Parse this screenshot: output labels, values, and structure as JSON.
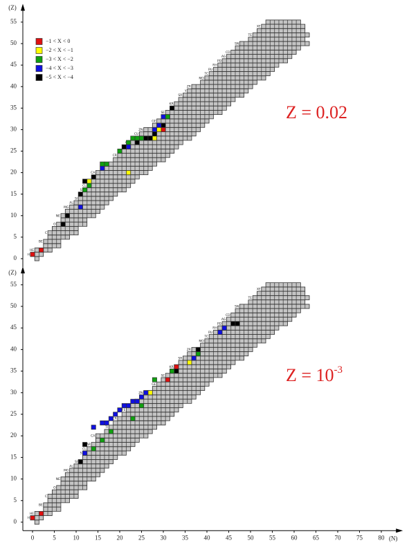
{
  "chart_data": [
    {
      "type": "nuclide",
      "y_label": "(Z)",
      "annotation": "Z = 0.02",
      "ylim": [
        -1,
        57
      ],
      "yticks": [
        0,
        5,
        10,
        15,
        20,
        25,
        30,
        35,
        40,
        45,
        50,
        55
      ],
      "xlim": [
        -2,
        84
      ],
      "rows": [
        [
          0,
          1,
          1
        ],
        [
          1,
          0,
          2
        ],
        [
          2,
          1,
          4
        ],
        [
          3,
          3,
          6
        ],
        [
          4,
          3,
          6
        ],
        [
          5,
          4,
          8
        ],
        [
          6,
          4,
          10
        ],
        [
          7,
          5,
          10
        ],
        [
          8,
          6,
          12
        ],
        [
          9,
          7,
          12
        ],
        [
          10,
          7,
          14
        ],
        [
          11,
          8,
          15
        ],
        [
          12,
          9,
          16
        ],
        [
          13,
          10,
          17
        ],
        [
          14,
          11,
          18
        ],
        [
          15,
          12,
          19
        ],
        [
          16,
          12,
          21
        ],
        [
          17,
          13,
          22
        ],
        [
          18,
          14,
          23
        ],
        [
          19,
          15,
          24
        ],
        [
          20,
          15,
          26
        ],
        [
          21,
          17,
          27
        ],
        [
          22,
          18,
          28
        ],
        [
          23,
          19,
          30
        ],
        [
          24,
          20,
          31
        ],
        [
          25,
          21,
          32
        ],
        [
          26,
          22,
          33
        ],
        [
          27,
          23,
          34
        ],
        [
          28,
          24,
          36
        ],
        [
          29,
          25,
          37
        ],
        [
          30,
          26,
          38
        ],
        [
          31,
          28,
          39
        ],
        [
          32,
          29,
          40
        ],
        [
          33,
          30,
          41
        ],
        [
          34,
          31,
          43
        ],
        [
          35,
          32,
          44
        ],
        [
          36,
          33,
          45
        ],
        [
          37,
          34,
          46
        ],
        [
          38,
          35,
          48
        ],
        [
          39,
          36,
          49
        ],
        [
          40,
          37,
          50
        ],
        [
          41,
          39,
          51
        ],
        [
          42,
          40,
          53
        ],
        [
          43,
          41,
          54
        ],
        [
          44,
          42,
          55
        ],
        [
          45,
          43,
          56
        ],
        [
          46,
          44,
          58
        ],
        [
          47,
          45,
          59
        ],
        [
          48,
          46,
          60
        ],
        [
          49,
          47,
          61
        ],
        [
          50,
          48,
          63
        ],
        [
          51,
          50,
          62
        ],
        [
          52,
          51,
          63
        ],
        [
          53,
          52,
          62
        ],
        [
          54,
          53,
          62
        ],
        [
          55,
          54,
          61
        ]
      ],
      "elements": [
        {
          "z": 1,
          "label": "H"
        },
        {
          "z": 2,
          "label": "HE"
        },
        {
          "z": 4,
          "label": "BE"
        },
        {
          "z": 6,
          "label": "C"
        },
        {
          "z": 8,
          "label": "O"
        },
        {
          "z": 10,
          "label": "NE"
        },
        {
          "z": 12,
          "label": "MG"
        },
        {
          "z": 13,
          "label": "AL"
        },
        {
          "z": 14,
          "label": "SI"
        },
        {
          "z": 15,
          "label": "P"
        },
        {
          "z": 16,
          "label": "S"
        },
        {
          "z": 17,
          "label": "CL"
        },
        {
          "z": 18,
          "label": "AR"
        },
        {
          "z": 20,
          "label": "CA"
        },
        {
          "z": 22,
          "label": "TI"
        },
        {
          "z": 24,
          "label": "CR"
        },
        {
          "z": 26,
          "label": "FE"
        },
        {
          "z": 27,
          "label": "CO"
        },
        {
          "z": 28,
          "label": "NI"
        },
        {
          "z": 29,
          "label": "CU"
        },
        {
          "z": 30,
          "label": "ZN"
        },
        {
          "z": 32,
          "label": "GE"
        },
        {
          "z": 34,
          "label": "SE"
        },
        {
          "z": 36,
          "label": "KR"
        },
        {
          "z": 38,
          "label": "SR"
        },
        {
          "z": 39,
          "label": "Y"
        },
        {
          "z": 40,
          "label": "ZR"
        },
        {
          "z": 42,
          "label": "MO"
        },
        {
          "z": 43,
          "label": "TC"
        },
        {
          "z": 44,
          "label": "RU"
        },
        {
          "z": 45,
          "label": "RH"
        },
        {
          "z": 46,
          "label": "PD"
        },
        {
          "z": 47,
          "label": "AG"
        },
        {
          "z": 48,
          "label": "CD"
        },
        {
          "z": 50,
          "label": "SN"
        },
        {
          "z": 52,
          "label": "TE"
        },
        {
          "z": 54,
          "label": "XE"
        }
      ],
      "series": [
        {
          "name": "−1 < X < 0",
          "color": "#e01010",
          "cells": [
            [
              0,
              1
            ],
            [
              2,
              2
            ],
            [
              30,
              30
            ]
          ]
        },
        {
          "name": "−2 < X < −1",
          "color": "#ffff00",
          "cells": [
            [
              13,
              18
            ],
            [
              22,
              20
            ],
            [
              27,
              28
            ],
            [
              28,
              28
            ],
            [
              29,
              30
            ]
          ]
        },
        {
          "name": "−3 < X < −2",
          "color": "#10a010",
          "cells": [
            [
              12,
              16
            ],
            [
              13,
              17
            ],
            [
              16,
              22
            ],
            [
              17,
              22
            ],
            [
              20,
              25
            ],
            [
              22,
              27
            ],
            [
              23,
              28
            ],
            [
              24,
              28
            ],
            [
              25,
              28
            ],
            [
              31,
              33
            ]
          ]
        },
        {
          "name": "−4 < X < −3",
          "color": "#1010e0",
          "cells": [
            [
              11,
              12
            ],
            [
              16,
              21
            ],
            [
              22,
              26
            ],
            [
              28,
              30
            ],
            [
              29,
              31
            ],
            [
              30,
              33
            ]
          ]
        },
        {
          "name": "−5 < X < −4",
          "color": "#000000",
          "cells": [
            [
              7,
              8
            ],
            [
              8,
              10
            ],
            [
              11,
              15
            ],
            [
              12,
              18
            ],
            [
              14,
              19
            ],
            [
              21,
              26
            ],
            [
              24,
              27
            ],
            [
              26,
              28
            ],
            [
              27,
              28
            ],
            [
              28,
              29
            ],
            [
              30,
              31
            ],
            [
              32,
              35
            ]
          ]
        }
      ]
    },
    {
      "type": "nuclide",
      "y_label": "(Z)",
      "x_label": "(N)",
      "annotation": {
        "base": "Z = 10",
        "sup": "-3"
      },
      "ylim": [
        -1,
        57
      ],
      "yticks": [
        0,
        5,
        10,
        15,
        20,
        25,
        30,
        35,
        40,
        45,
        50,
        55
      ],
      "xlim": [
        -2,
        84
      ],
      "xticks": [
        0,
        5,
        10,
        15,
        20,
        25,
        30,
        35,
        40,
        45,
        50,
        55,
        60,
        65,
        70,
        75,
        80
      ],
      "rows": [
        [
          0,
          1,
          1
        ],
        [
          1,
          0,
          2
        ],
        [
          2,
          1,
          4
        ],
        [
          3,
          3,
          6
        ],
        [
          4,
          3,
          6
        ],
        [
          5,
          4,
          8
        ],
        [
          6,
          4,
          10
        ],
        [
          7,
          5,
          10
        ],
        [
          8,
          6,
          12
        ],
        [
          9,
          7,
          12
        ],
        [
          10,
          7,
          14
        ],
        [
          11,
          8,
          15
        ],
        [
          12,
          9,
          16
        ],
        [
          13,
          10,
          17
        ],
        [
          14,
          11,
          18
        ],
        [
          15,
          12,
          19
        ],
        [
          16,
          12,
          21
        ],
        [
          17,
          13,
          22
        ],
        [
          18,
          14,
          23
        ],
        [
          19,
          15,
          24
        ],
        [
          20,
          15,
          26
        ],
        [
          21,
          17,
          27
        ],
        [
          22,
          18,
          28
        ],
        [
          23,
          19,
          30
        ],
        [
          24,
          20,
          31
        ],
        [
          25,
          21,
          32
        ],
        [
          26,
          22,
          33
        ],
        [
          27,
          23,
          34
        ],
        [
          28,
          24,
          36
        ],
        [
          29,
          25,
          37
        ],
        [
          30,
          26,
          38
        ],
        [
          31,
          28,
          39
        ],
        [
          32,
          29,
          40
        ],
        [
          33,
          30,
          41
        ],
        [
          34,
          31,
          43
        ],
        [
          35,
          32,
          44
        ],
        [
          36,
          33,
          45
        ],
        [
          37,
          34,
          46
        ],
        [
          38,
          35,
          48
        ],
        [
          39,
          36,
          49
        ],
        [
          40,
          37,
          50
        ],
        [
          41,
          39,
          51
        ],
        [
          42,
          40,
          53
        ],
        [
          43,
          41,
          54
        ],
        [
          44,
          42,
          55
        ],
        [
          45,
          43,
          56
        ],
        [
          46,
          44,
          58
        ],
        [
          47,
          45,
          59
        ],
        [
          48,
          46,
          60
        ],
        [
          49,
          47,
          61
        ],
        [
          50,
          48,
          63
        ],
        [
          51,
          50,
          62
        ],
        [
          52,
          51,
          63
        ],
        [
          53,
          52,
          62
        ],
        [
          54,
          53,
          62
        ],
        [
          55,
          54,
          61
        ]
      ],
      "elements": [
        {
          "z": 1,
          "label": "H"
        },
        {
          "z": 2,
          "label": "HE"
        },
        {
          "z": 4,
          "label": "BE"
        },
        {
          "z": 6,
          "label": "C"
        },
        {
          "z": 8,
          "label": "O"
        },
        {
          "z": 10,
          "label": "NE"
        },
        {
          "z": 12,
          "label": "MG"
        },
        {
          "z": 13,
          "label": "AL"
        },
        {
          "z": 14,
          "label": "SI"
        },
        {
          "z": 16,
          "label": "S"
        },
        {
          "z": 17,
          "label": "CL"
        },
        {
          "z": 18,
          "label": "AR"
        },
        {
          "z": 20,
          "label": "CA"
        },
        {
          "z": 22,
          "label": "TI"
        },
        {
          "z": 24,
          "label": "CR"
        },
        {
          "z": 26,
          "label": "FE"
        },
        {
          "z": 28,
          "label": "NI"
        },
        {
          "z": 30,
          "label": "ZN"
        },
        {
          "z": 32,
          "label": "GE"
        },
        {
          "z": 34,
          "label": "SE"
        },
        {
          "z": 36,
          "label": "KR"
        },
        {
          "z": 38,
          "label": "SR"
        },
        {
          "z": 40,
          "label": "ZR"
        },
        {
          "z": 42,
          "label": "MO"
        },
        {
          "z": 43,
          "label": "TC"
        },
        {
          "z": 44,
          "label": "RU"
        },
        {
          "z": 45,
          "label": "RH"
        },
        {
          "z": 46,
          "label": "PD"
        },
        {
          "z": 47,
          "label": "AG"
        },
        {
          "z": 48,
          "label": "CD"
        },
        {
          "z": 50,
          "label": "SN"
        },
        {
          "z": 52,
          "label": "TE"
        },
        {
          "z": 54,
          "label": "XE"
        }
      ],
      "series": [
        {
          "color": "#e01010",
          "cells": [
            [
              0,
              1
            ],
            [
              2,
              2
            ],
            [
              31,
              33
            ],
            [
              33,
              36
            ]
          ]
        },
        {
          "color": "#ffff00",
          "cells": [
            [
              27,
              30
            ],
            [
              36,
              37
            ]
          ]
        },
        {
          "color": "#10a010",
          "cells": [
            [
              14,
              17
            ],
            [
              16,
              19
            ],
            [
              18,
              21
            ],
            [
              23,
              24
            ],
            [
              25,
              27
            ],
            [
              28,
              33
            ],
            [
              32,
              35
            ],
            [
              38,
              39
            ]
          ]
        },
        {
          "color": "#1010e0",
          "cells": [
            [
              12,
              16
            ],
            [
              14,
              22
            ],
            [
              16,
              23
            ],
            [
              17,
              23
            ],
            [
              18,
              24
            ],
            [
              19,
              25
            ],
            [
              20,
              26
            ],
            [
              21,
              27
            ],
            [
              22,
              27
            ],
            [
              23,
              28
            ],
            [
              24,
              28
            ],
            [
              25,
              29
            ],
            [
              26,
              30
            ],
            [
              37,
              38
            ],
            [
              43,
              44
            ],
            [
              44,
              45
            ]
          ]
        },
        {
          "color": "#000000",
          "cells": [
            [
              11,
              14
            ],
            [
              12,
              18
            ],
            [
              33,
              35
            ],
            [
              38,
              40
            ],
            [
              46,
              46
            ],
            [
              47,
              46
            ]
          ]
        }
      ]
    }
  ]
}
